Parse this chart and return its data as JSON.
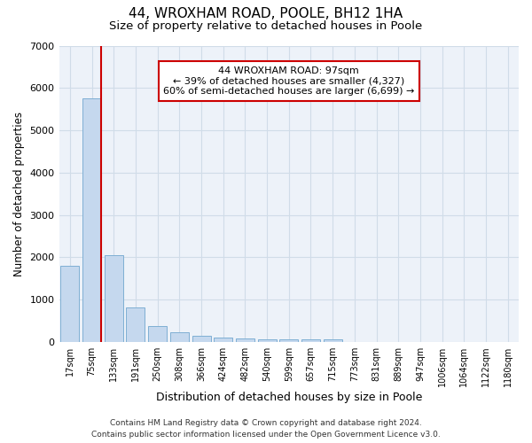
{
  "title": "44, WROXHAM ROAD, POOLE, BH12 1HA",
  "subtitle": "Size of property relative to detached houses in Poole",
  "xlabel": "Distribution of detached houses by size in Poole",
  "ylabel": "Number of detached properties",
  "categories": [
    "17sqm",
    "75sqm",
    "133sqm",
    "191sqm",
    "250sqm",
    "308sqm",
    "366sqm",
    "424sqm",
    "482sqm",
    "540sqm",
    "599sqm",
    "657sqm",
    "715sqm",
    "773sqm",
    "831sqm",
    "889sqm",
    "947sqm",
    "1006sqm",
    "1064sqm",
    "1122sqm",
    "1180sqm"
  ],
  "values": [
    1800,
    5750,
    2050,
    820,
    370,
    230,
    155,
    110,
    85,
    70,
    65,
    58,
    55,
    0,
    0,
    0,
    0,
    0,
    0,
    0,
    0
  ],
  "bar_color": "#c5d8ee",
  "bar_edge_color": "#7fafd4",
  "vline_color": "#cc0000",
  "annotation_line1": "44 WROXHAM ROAD: 97sqm",
  "annotation_line2": "← 39% of detached houses are smaller (4,327)",
  "annotation_line3": "60% of semi-detached houses are larger (6,699) →",
  "annotation_box_color": "#ffffff",
  "annotation_box_edge_color": "#cc0000",
  "ylim": [
    0,
    7000
  ],
  "yticks": [
    0,
    1000,
    2000,
    3000,
    4000,
    5000,
    6000,
    7000
  ],
  "grid_color": "#d0dce8",
  "background_color": "#ffffff",
  "plot_background_color": "#edf2f9",
  "footer_line1": "Contains HM Land Registry data © Crown copyright and database right 2024.",
  "footer_line2": "Contains public sector information licensed under the Open Government Licence v3.0.",
  "title_fontsize": 11,
  "subtitle_fontsize": 9.5,
  "tick_fontsize": 7,
  "ylabel_fontsize": 8.5,
  "xlabel_fontsize": 9,
  "footer_fontsize": 6.5
}
